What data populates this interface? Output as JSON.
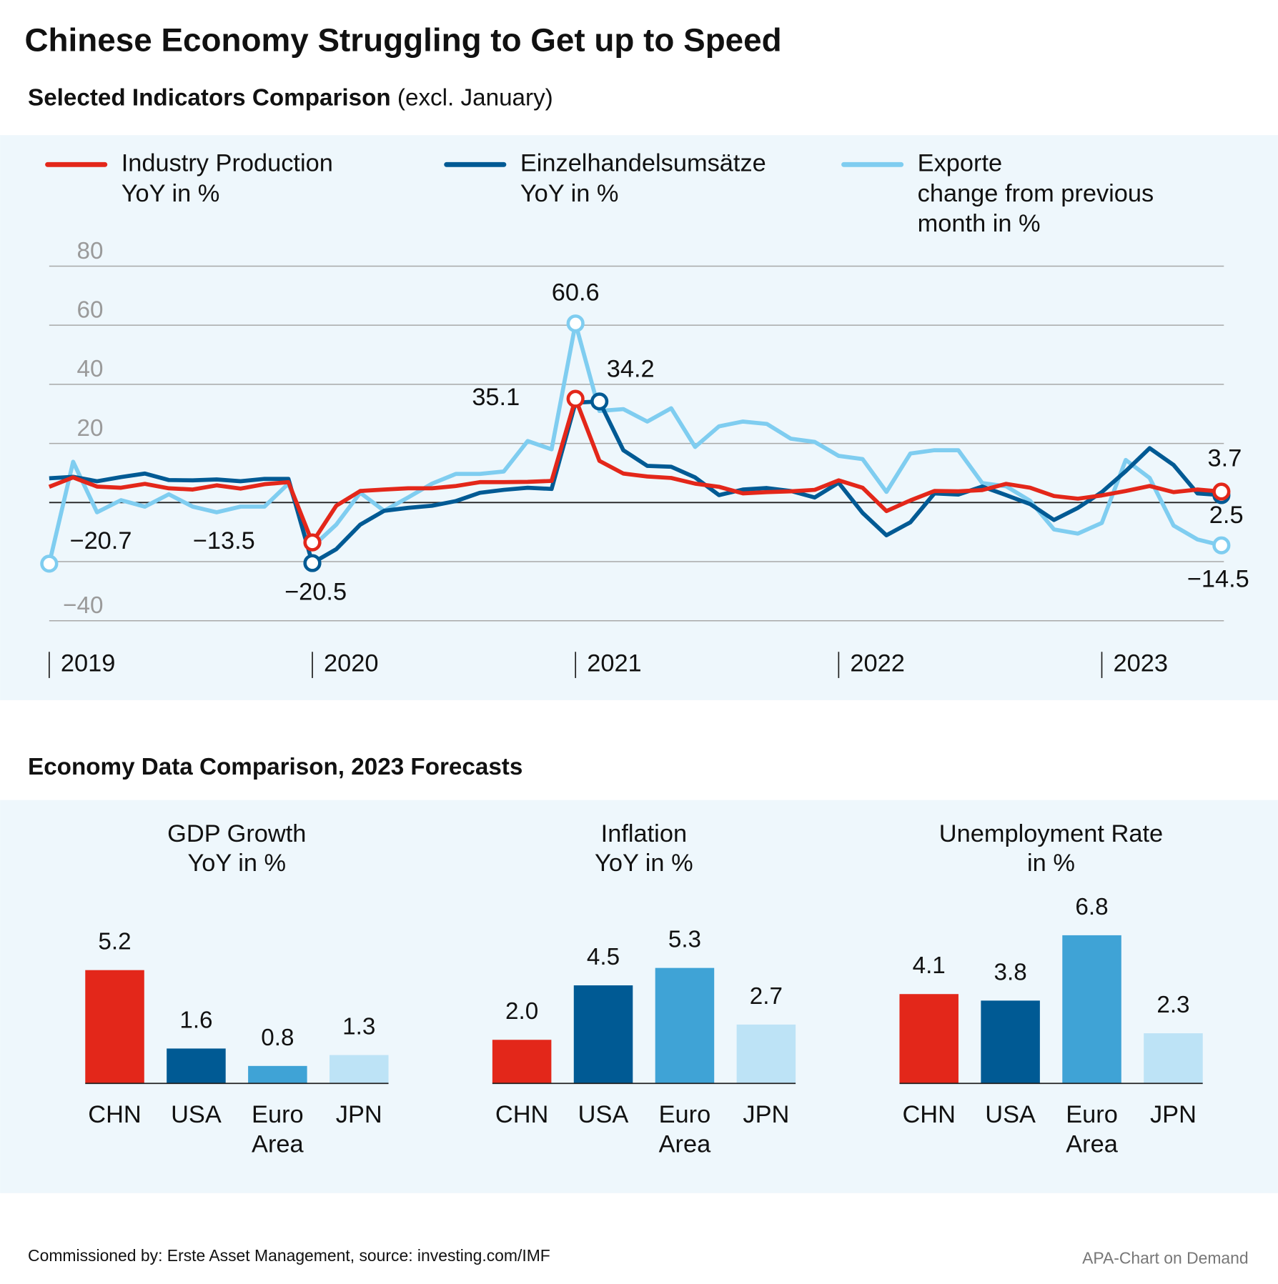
{
  "title": "Chinese Economy Struggling to Get up to Speed",
  "section_title": "Economy Data Comparison, 2023 Forecasts",
  "footer": {
    "source": "Commissioned by: Erste Asset Management, source: investing.com/IMF",
    "credit": "APA-Chart on Demand"
  },
  "chart_data": [
    {
      "type": "line",
      "title": "Selected Indicators Comparison",
      "subtitle": "(excl. January)",
      "categories": [
        "2019",
        null,
        null,
        null,
        null,
        null,
        null,
        null,
        null,
        null,
        null,
        "2020",
        null,
        null,
        null,
        null,
        null,
        null,
        null,
        null,
        null,
        null,
        "2021",
        null,
        null,
        null,
        null,
        null,
        null,
        null,
        null,
        null,
        null,
        "2022",
        null,
        null,
        null,
        null,
        null,
        null,
        null,
        null,
        null,
        null,
        "2023",
        null,
        null,
        null,
        null,
        null
      ],
      "ylim": [
        -40,
        80
      ],
      "yticks": [
        {
          "value": -40,
          "label": "−40"
        },
        {
          "value": -20,
          "label": null
        },
        {
          "value": 0,
          "label": null
        },
        20,
        40,
        60,
        80
      ],
      "grid": true,
      "series": [
        {
          "name": "Industry Production\nYoY in %",
          "color": "#e3271a",
          "values": [
            5.3,
            8.5,
            5.4,
            5.0,
            6.3,
            4.8,
            4.4,
            5.8,
            4.7,
            6.2,
            6.9,
            -13.5,
            -1.1,
            3.9,
            4.4,
            4.8,
            4.8,
            5.6,
            6.9,
            6.9,
            7.0,
            7.3,
            35.1,
            14.1,
            9.8,
            8.8,
            8.3,
            6.4,
            5.3,
            3.1,
            3.5,
            3.8,
            4.3,
            7.5,
            5.0,
            -2.9,
            0.7,
            3.9,
            3.8,
            4.2,
            6.3,
            5.0,
            2.2,
            1.3,
            2.4,
            3.9,
            5.6,
            3.5,
            4.4,
            3.7
          ],
          "value_labels": [
            null,
            null,
            null,
            null,
            null,
            null,
            null,
            null,
            null,
            null,
            null,
            "−13.5",
            null,
            null,
            null,
            null,
            null,
            null,
            null,
            null,
            null,
            null,
            "35.1",
            null,
            null,
            null,
            null,
            null,
            null,
            null,
            null,
            null,
            null,
            null,
            null,
            null,
            null,
            null,
            null,
            null,
            null,
            null,
            null,
            null,
            null,
            null,
            null,
            null,
            null,
            "3.7"
          ]
        },
        {
          "name": "Einzelhandelsumsätze\nYoY in %",
          "color": "#005a94",
          "values": [
            8.2,
            8.7,
            7.2,
            8.6,
            9.8,
            7.6,
            7.5,
            7.8,
            7.2,
            8.0,
            8.0,
            -20.5,
            -15.8,
            -7.5,
            -2.8,
            -1.8,
            -1.1,
            0.5,
            3.3,
            4.3,
            5.0,
            4.6,
            33.8,
            34.2,
            17.7,
            12.4,
            12.1,
            8.5,
            2.5,
            4.4,
            4.9,
            3.9,
            1.7,
            6.7,
            -3.5,
            -11.1,
            -6.7,
            3.1,
            2.7,
            5.4,
            2.5,
            -0.5,
            -5.9,
            -1.8,
            3.5,
            10.6,
            18.4,
            12.7,
            3.1,
            2.5
          ],
          "value_labels": [
            null,
            null,
            null,
            null,
            null,
            null,
            null,
            null,
            null,
            null,
            null,
            "−20.5",
            null,
            null,
            null,
            null,
            null,
            null,
            null,
            null,
            null,
            null,
            null,
            "34.2",
            null,
            null,
            null,
            null,
            null,
            null,
            null,
            null,
            null,
            null,
            null,
            null,
            null,
            null,
            null,
            null,
            null,
            null,
            null,
            null,
            null,
            null,
            null,
            null,
            null,
            "2.5"
          ]
        },
        {
          "name": "Exporte\nchange from previous\nmonth in %",
          "color": "#7fcdf0",
          "values": [
            -20.7,
            13.8,
            -3.3,
            0.8,
            -1.4,
            2.8,
            -1.4,
            -3.3,
            -1.4,
            -1.4,
            6.4,
            -15,
            -7.5,
            3.3,
            -2.8,
            1.7,
            6.4,
            9.7,
            9.7,
            10.5,
            20.8,
            18,
            60.6,
            31,
            31.6,
            27.4,
            31.9,
            18.8,
            25.8,
            27.4,
            26.6,
            21.6,
            20.5,
            15.8,
            14.7,
            3.6,
            16.6,
            17.7,
            17.7,
            6.6,
            5.5,
            0.6,
            -9.1,
            -10.5,
            -6.9,
            14.4,
            8.3,
            -7.8,
            -12.5,
            -14.5
          ],
          "value_labels": [
            "−20.7",
            null,
            null,
            null,
            null,
            null,
            null,
            null,
            null,
            null,
            null,
            null,
            null,
            null,
            null,
            null,
            null,
            null,
            null,
            null,
            null,
            null,
            "60.6",
            null,
            null,
            null,
            null,
            null,
            null,
            null,
            null,
            null,
            null,
            null,
            null,
            null,
            null,
            null,
            null,
            null,
            null,
            null,
            null,
            null,
            null,
            null,
            null,
            null,
            null,
            "−14.5"
          ]
        }
      ]
    },
    {
      "type": "bar",
      "title": "GDP Growth\nYoY in %",
      "categories": [
        "CHN",
        "USA",
        "Euro\nArea",
        "JPN"
      ],
      "values": [
        5.2,
        1.6,
        0.8,
        1.3
      ],
      "value_labels": [
        "5.2",
        "1.6",
        "0.8",
        "1.3"
      ],
      "colors": [
        "#e3271a",
        "#005a94",
        "#3fa3d6",
        "#bde3f6"
      ]
    },
    {
      "type": "bar",
      "title": "Inflation\nYoY in %",
      "categories": [
        "CHN",
        "USA",
        "Euro\nArea",
        "JPN"
      ],
      "values": [
        2.0,
        4.5,
        5.3,
        2.7
      ],
      "value_labels": [
        "2.0",
        "4.5",
        "5.3",
        "2.7"
      ],
      "colors": [
        "#e3271a",
        "#005a94",
        "#3fa3d6",
        "#bde3f6"
      ]
    },
    {
      "type": "bar",
      "title": "Unemployment Rate\nin %",
      "categories": [
        "CHN",
        "USA",
        "Euro\nArea",
        "JPN"
      ],
      "values": [
        4.1,
        3.8,
        6.8,
        2.3
      ],
      "value_labels": [
        "4.1",
        "3.8",
        "6.8",
        "2.3"
      ],
      "colors": [
        "#e3271a",
        "#005a94",
        "#3fa3d6",
        "#bde3f6"
      ]
    }
  ]
}
